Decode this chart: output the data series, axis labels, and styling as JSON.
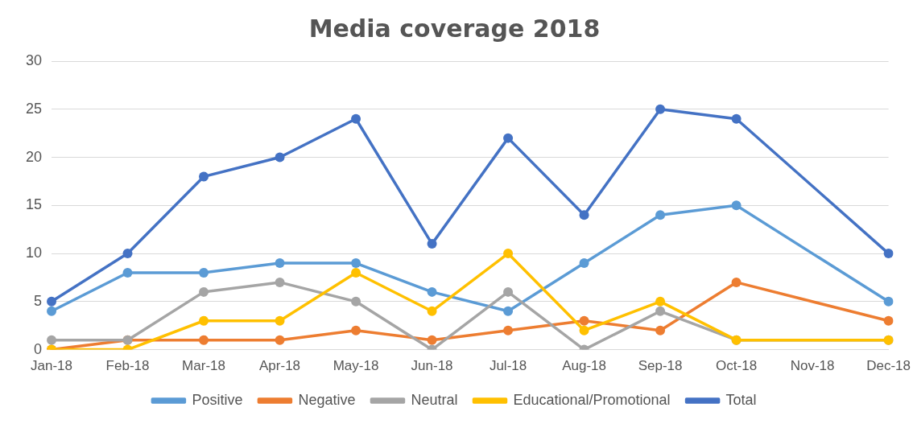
{
  "chart_data": {
    "type": "line",
    "title": "Media coverage 2018",
    "categories": [
      "Jan-18",
      "Feb-18",
      "Mar-18",
      "Apr-18",
      "May-18",
      "Jun-18",
      "Jul-18",
      "Aug-18",
      "Sep-18",
      "Oct-18",
      "Nov-18",
      "Dec-18"
    ],
    "series": [
      {
        "name": "Positive",
        "color": "#5b9bd5",
        "values": [
          4,
          8,
          8,
          9,
          9,
          6,
          4,
          9,
          14,
          15,
          null,
          5
        ]
      },
      {
        "name": "Negative",
        "color": "#ed7d31",
        "values": [
          0,
          1,
          1,
          1,
          2,
          1,
          2,
          3,
          2,
          7,
          null,
          3
        ]
      },
      {
        "name": "Neutral",
        "color": "#a5a5a5",
        "values": [
          1,
          1,
          6,
          7,
          5,
          0,
          6,
          0,
          4,
          1,
          null,
          1
        ]
      },
      {
        "name": "Educational/Promotional",
        "color": "#ffc000",
        "values": [
          0,
          0,
          3,
          3,
          8,
          4,
          10,
          2,
          5,
          1,
          null,
          1
        ]
      },
      {
        "name": "Total",
        "color": "#4472c4",
        "values": [
          5,
          10,
          18,
          20,
          24,
          11,
          22,
          14,
          25,
          24,
          null,
          10
        ]
      }
    ],
    "ylim": [
      0,
      30
    ],
    "yticks": [
      0,
      5,
      10,
      15,
      20,
      25,
      30
    ],
    "grid": "y",
    "legend": "bottom",
    "marker": "circle",
    "line_style": "solid"
  }
}
